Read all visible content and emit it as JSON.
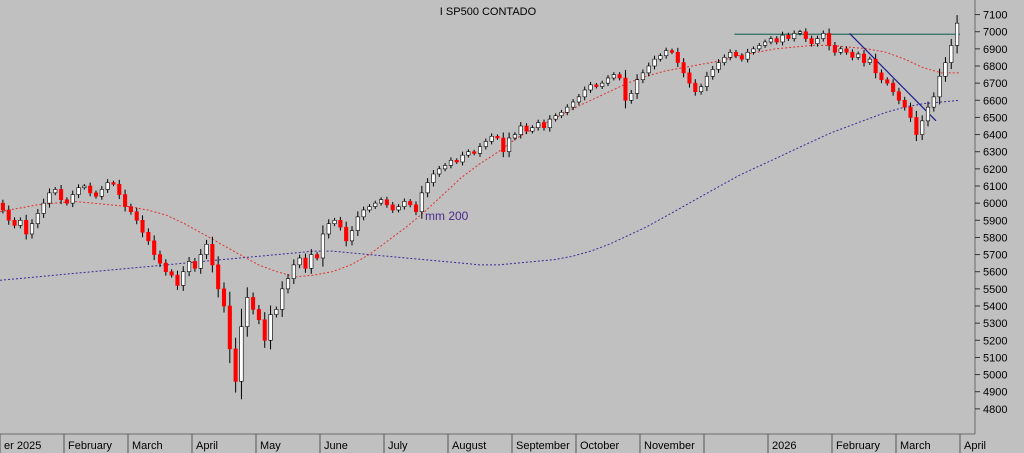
{
  "chart_data": {
    "type": "candlestick",
    "title": "I SP500 CONTADO",
    "xlabel": "",
    "ylabel": "",
    "ylim": [
      4700,
      7150
    ],
    "y_ticks": [
      4800,
      4900,
      5000,
      5100,
      5200,
      5300,
      5400,
      5500,
      5600,
      5700,
      5800,
      5900,
      6000,
      6100,
      6200,
      6300,
      6400,
      6500,
      6600,
      6700,
      6800,
      6900,
      7000,
      7100
    ],
    "x_tick_labels": [
      "er 2025",
      "February",
      "March",
      "April",
      "May",
      "June",
      "July",
      "August",
      "September",
      "October",
      "November",
      "",
      "2026",
      "February",
      "March",
      "April"
    ],
    "grid": false,
    "annotations": [
      {
        "text": "mm 200",
        "target_series": "mm 200",
        "near_value": 5850
      }
    ],
    "series": [
      {
        "name": "price",
        "style": "candles",
        "up_color": "#ffffff",
        "down_color": "#ff0000",
        "points": [
          [
            6000,
            5960
          ],
          [
            5960,
            5900
          ],
          [
            5900,
            5870
          ],
          [
            5870,
            5900
          ],
          [
            5900,
            5820
          ],
          [
            5820,
            5880
          ],
          [
            5880,
            5940
          ],
          [
            5940,
            6000
          ],
          [
            6000,
            6060
          ],
          [
            6060,
            6080
          ],
          [
            6080,
            6020
          ],
          [
            6020,
            6000
          ],
          [
            6000,
            6050
          ],
          [
            6050,
            6090
          ],
          [
            6090,
            6100
          ],
          [
            6100,
            6060
          ],
          [
            6060,
            6040
          ],
          [
            6040,
            6080
          ],
          [
            6080,
            6120
          ],
          [
            6120,
            6110
          ],
          [
            6110,
            6050
          ],
          [
            6050,
            5980
          ],
          [
            5980,
            5950
          ],
          [
            5950,
            5900
          ],
          [
            5900,
            5830
          ],
          [
            5830,
            5780
          ],
          [
            5780,
            5700
          ],
          [
            5700,
            5650
          ],
          [
            5650,
            5600
          ],
          [
            5600,
            5580
          ],
          [
            5580,
            5520
          ],
          [
            5520,
            5600
          ],
          [
            5600,
            5660
          ],
          [
            5660,
            5620
          ],
          [
            5620,
            5700
          ],
          [
            5700,
            5760
          ],
          [
            5760,
            5640
          ],
          [
            5640,
            5500
          ],
          [
            5500,
            5400
          ],
          [
            5400,
            5150
          ],
          [
            5150,
            4960
          ],
          [
            4960,
            5280
          ],
          [
            5280,
            5450
          ],
          [
            5450,
            5380
          ],
          [
            5380,
            5320
          ],
          [
            5320,
            5200
          ],
          [
            5200,
            5350
          ],
          [
            5350,
            5380
          ],
          [
            5380,
            5500
          ],
          [
            5500,
            5560
          ],
          [
            5560,
            5640
          ],
          [
            5640,
            5680
          ],
          [
            5680,
            5620
          ],
          [
            5620,
            5700
          ],
          [
            5700,
            5680
          ],
          [
            5680,
            5820
          ],
          [
            5820,
            5880
          ],
          [
            5880,
            5900
          ],
          [
            5900,
            5860
          ],
          [
            5860,
            5780
          ],
          [
            5780,
            5840
          ],
          [
            5840,
            5920
          ],
          [
            5920,
            5960
          ],
          [
            5960,
            5980
          ],
          [
            5980,
            6000
          ],
          [
            6000,
            6020
          ],
          [
            6020,
            5990
          ],
          [
            5990,
            5960
          ],
          [
            5960,
            5980
          ],
          [
            5980,
            6010
          ],
          [
            6010,
            5990
          ],
          [
            5990,
            5950
          ],
          [
            5950,
            6060
          ],
          [
            6060,
            6120
          ],
          [
            6120,
            6170
          ],
          [
            6170,
            6200
          ],
          [
            6200,
            6220
          ],
          [
            6220,
            6250
          ],
          [
            6250,
            6240
          ],
          [
            6240,
            6280
          ],
          [
            6280,
            6300
          ],
          [
            6300,
            6290
          ],
          [
            6290,
            6330
          ],
          [
            6330,
            6360
          ],
          [
            6360,
            6390
          ],
          [
            6390,
            6380
          ],
          [
            6380,
            6300
          ],
          [
            6300,
            6380
          ],
          [
            6380,
            6400
          ],
          [
            6400,
            6450
          ],
          [
            6450,
            6420
          ],
          [
            6420,
            6440
          ],
          [
            6440,
            6470
          ],
          [
            6470,
            6440
          ],
          [
            6440,
            6490
          ],
          [
            6490,
            6510
          ],
          [
            6510,
            6530
          ],
          [
            6530,
            6560
          ],
          [
            6560,
            6590
          ],
          [
            6590,
            6620
          ],
          [
            6620,
            6660
          ],
          [
            6660,
            6690
          ],
          [
            6690,
            6680
          ],
          [
            6680,
            6700
          ],
          [
            6700,
            6730
          ],
          [
            6730,
            6750
          ],
          [
            6750,
            6730
          ],
          [
            6730,
            6600
          ],
          [
            6600,
            6640
          ],
          [
            6640,
            6720
          ],
          [
            6720,
            6760
          ],
          [
            6760,
            6800
          ],
          [
            6800,
            6840
          ],
          [
            6840,
            6860
          ],
          [
            6860,
            6890
          ],
          [
            6890,
            6880
          ],
          [
            6880,
            6820
          ],
          [
            6820,
            6760
          ],
          [
            6760,
            6700
          ],
          [
            6700,
            6650
          ],
          [
            6650,
            6680
          ],
          [
            6680,
            6740
          ],
          [
            6740,
            6780
          ],
          [
            6780,
            6820
          ],
          [
            6820,
            6850
          ],
          [
            6850,
            6880
          ],
          [
            6880,
            6860
          ],
          [
            6860,
            6840
          ],
          [
            6840,
            6880
          ],
          [
            6880,
            6900
          ],
          [
            6900,
            6920
          ],
          [
            6920,
            6940
          ],
          [
            6940,
            6960
          ],
          [
            6960,
            6940
          ],
          [
            6940,
            6980
          ],
          [
            6980,
            6960
          ],
          [
            6960,
            6990
          ],
          [
            6990,
            7000
          ],
          [
            7000,
            6960
          ],
          [
            6960,
            6930
          ],
          [
            6930,
            6960
          ],
          [
            6960,
            6990
          ],
          [
            6990,
            6920
          ],
          [
            6920,
            6880
          ],
          [
            6880,
            6900
          ],
          [
            6900,
            6880
          ],
          [
            6880,
            6850
          ],
          [
            6850,
            6870
          ],
          [
            6870,
            6820
          ],
          [
            6820,
            6840
          ],
          [
            6840,
            6760
          ],
          [
            6760,
            6720
          ],
          [
            6720,
            6700
          ],
          [
            6700,
            6650
          ],
          [
            6650,
            6600
          ],
          [
            6600,
            6560
          ],
          [
            6560,
            6500
          ],
          [
            6500,
            6400
          ],
          [
            6400,
            6480
          ],
          [
            6480,
            6560
          ],
          [
            6560,
            6620
          ],
          [
            6620,
            6740
          ],
          [
            6740,
            6820
          ],
          [
            6820,
            6920
          ],
          [
            6920,
            7050
          ]
        ]
      },
      {
        "name": "mm 200",
        "style": "dotted",
        "color": "#3a2a9a",
        "values": [
          5550,
          5560,
          5570,
          5580,
          5590,
          5600,
          5610,
          5620,
          5630,
          5640,
          5650,
          5660,
          5670,
          5680,
          5690,
          5700,
          5710,
          5720,
          5720,
          5710,
          5700,
          5690,
          5680,
          5670,
          5660,
          5650,
          5640,
          5640,
          5650,
          5660,
          5670,
          5690,
          5720,
          5760,
          5810,
          5860,
          5920,
          5980,
          6040,
          6100,
          6160,
          6210,
          6260,
          6310,
          6360,
          6410,
          6450,
          6490,
          6530,
          6560,
          6580,
          6590,
          6600
        ]
      },
      {
        "name": "mm 50",
        "style": "dotted",
        "color": "#e03030",
        "values": [
          5950,
          5970,
          5990,
          6000,
          6010,
          6000,
          5990,
          5980,
          5960,
          5930,
          5880,
          5820,
          5760,
          5700,
          5640,
          5600,
          5570,
          5580,
          5600,
          5640,
          5700,
          5780,
          5860,
          5950,
          6050,
          6150,
          6230,
          6300,
          6380,
          6440,
          6490,
          6550,
          6600,
          6650,
          6700,
          6740,
          6770,
          6790,
          6810,
          6830,
          6860,
          6880,
          6900,
          6910,
          6920,
          6920,
          6910,
          6900,
          6880,
          6840,
          6790,
          6760,
          6760
        ]
      },
      {
        "name": "resistance",
        "style": "line",
        "color": "#2e6e60",
        "values": [
          6985,
          6985
        ]
      },
      {
        "name": "trendline",
        "style": "line",
        "color": "#1a1a8c",
        "values": [
          6990,
          6480
        ]
      }
    ]
  }
}
